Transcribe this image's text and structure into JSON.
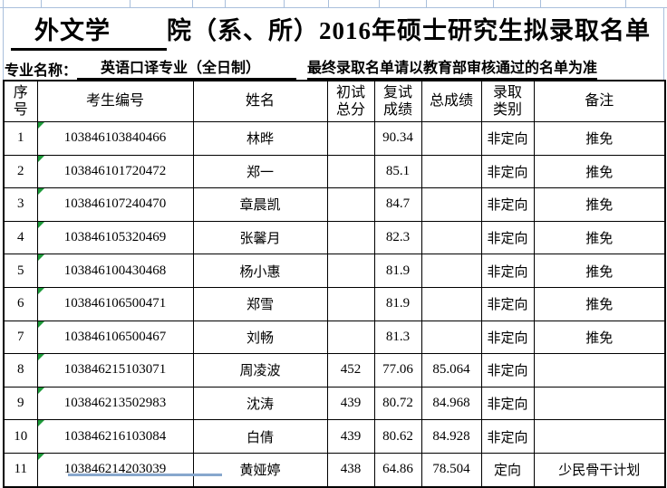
{
  "page": {
    "title_blank": "外文学",
    "title_rest": "院（系、所）2016年硕士研究生拟录取名单",
    "major_label": "专业名称：",
    "major_value": "英语口译专业（全日制）",
    "notice": "最终录取名单请以教育部审核通过的名单为准"
  },
  "table": {
    "headers": [
      "序号",
      "考生编号",
      "姓名",
      "初试\n总分",
      "复试\n成绩",
      "总成绩",
      "录取\n类别",
      "备注"
    ],
    "column_keys": [
      "index",
      "candidate-id",
      "name",
      "initial-score",
      "retest-score",
      "total-score",
      "admission-type",
      "remark"
    ],
    "rows": [
      [
        "1",
        "103846103840466",
        "林晔",
        "",
        "90.34",
        "",
        "非定向",
        "推免"
      ],
      [
        "2",
        "103846101720472",
        "郑一",
        "",
        "85.1",
        "",
        "非定向",
        "推免"
      ],
      [
        "3",
        "103846107240470",
        "章晨凯",
        "",
        "84.7",
        "",
        "非定向",
        "推免"
      ],
      [
        "4",
        "103846105320469",
        "张馨月",
        "",
        "82.3",
        "",
        "非定向",
        "推免"
      ],
      [
        "5",
        "103846100430468",
        "杨小惠",
        "",
        "81.9",
        "",
        "非定向",
        "推免"
      ],
      [
        "6",
        "103846106500471",
        "郑雪",
        "",
        "81.9",
        "",
        "非定向",
        "推免"
      ],
      [
        "7",
        "103846106500467",
        "刘畅",
        "",
        "81.3",
        "",
        "非定向",
        "推免"
      ],
      [
        "8",
        "103846215103071",
        "周凌波",
        "452",
        "77.06",
        "85.064",
        "非定向",
        ""
      ],
      [
        "9",
        "103846213502983",
        "沈涛",
        "439",
        "80.72",
        "84.968",
        "非定向",
        ""
      ],
      [
        "10",
        "103846216103084",
        "白倩",
        "439",
        "80.62",
        "84.928",
        "非定向",
        ""
      ],
      [
        "11",
        "103846214203039",
        "黄娅婷",
        "438",
        "64.86",
        "78.504",
        "定向",
        "少民骨干计划"
      ]
    ]
  },
  "colors": {
    "marker": "#1E9B3B",
    "gridline": "#A9BFDC",
    "strip": "#87A7CD",
    "border": "#000000",
    "background": "#FFFFFF"
  }
}
